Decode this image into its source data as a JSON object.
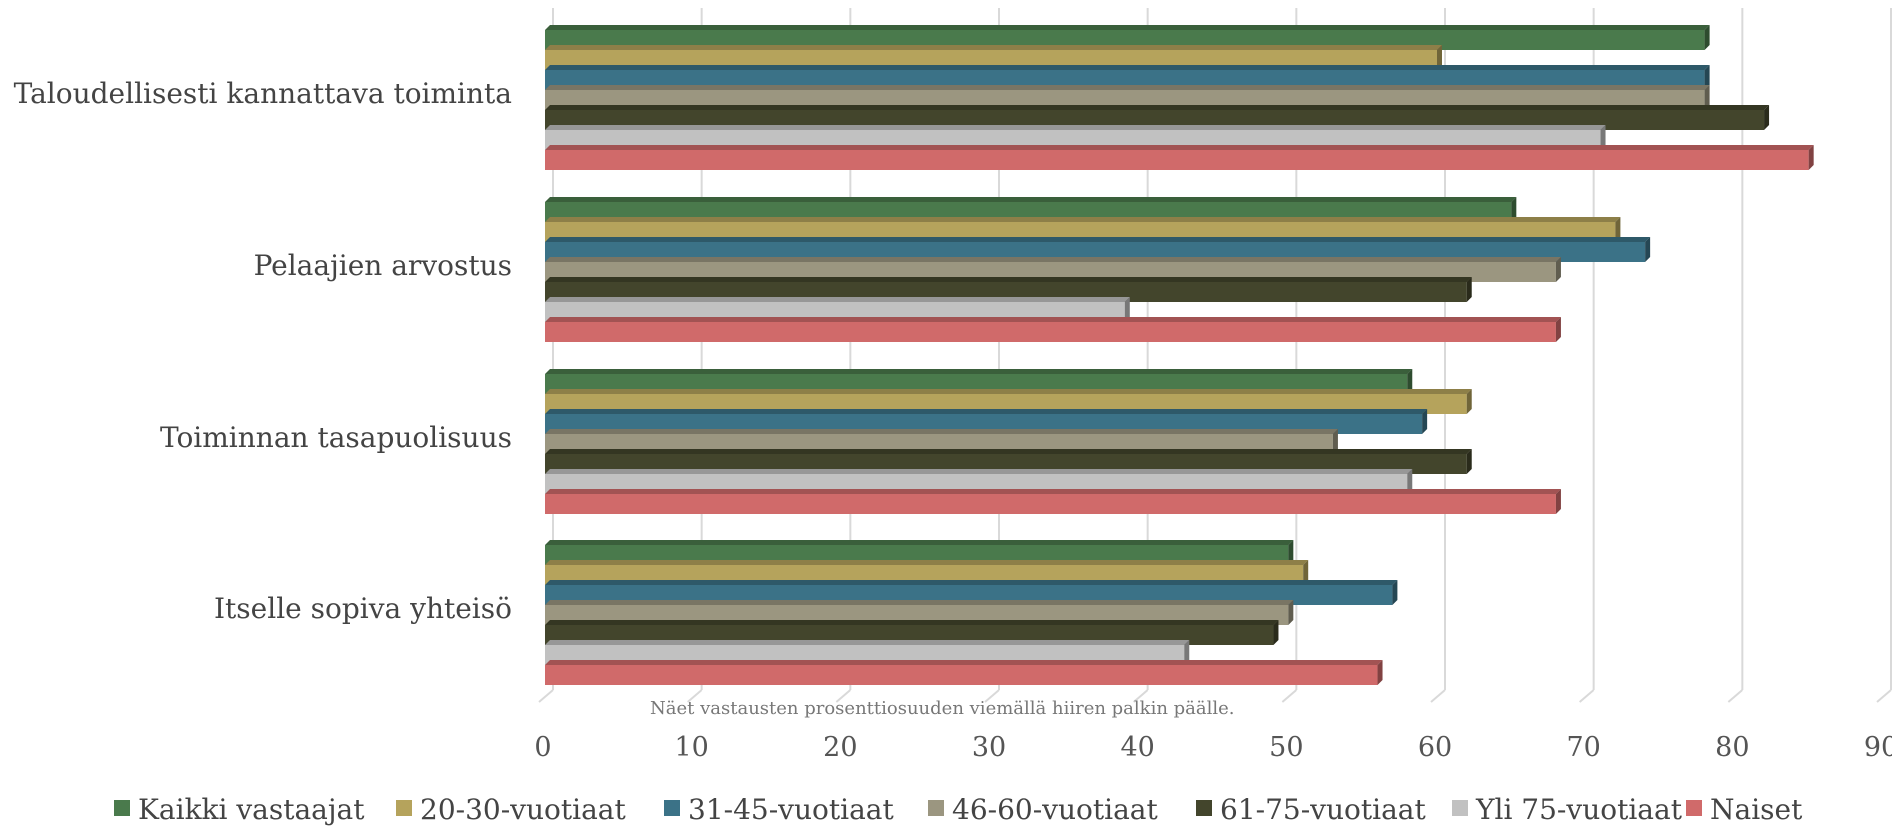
{
  "chart_data": {
    "type": "bar",
    "orientation": "horizontal",
    "title": "",
    "note": "Näet vastausten prosenttiosuuden viemällä hiiren palkin päälle.",
    "categories": [
      "Taloudellisesti kannattava toiminta",
      "Pelaajien arvostus",
      "Toiminnan tasapuolisuus",
      "Itselle sopiva yhteisö"
    ],
    "xlim": [
      0,
      90
    ],
    "xticks": [
      0,
      10,
      20,
      30,
      40,
      50,
      60,
      70,
      80,
      90
    ],
    "grid": true,
    "legend_position": "bottom",
    "series": [
      {
        "name": "Kaikki vastaajat",
        "color": "#4a7a4c",
        "values": [
          78,
          65,
          58,
          50
        ]
      },
      {
        "name": "20-30-vuotiaat",
        "color": "#b5a35c",
        "values": [
          60,
          72,
          62,
          51
        ]
      },
      {
        "name": "31-45-vuotiaat",
        "color": "#3b7287",
        "values": [
          78,
          74,
          59,
          57
        ]
      },
      {
        "name": "46-60-vuotiaat",
        "color": "#9b9680",
        "values": [
          78,
          68,
          53,
          50
        ]
      },
      {
        "name": "61-75-vuotiaat",
        "color": "#43452c",
        "values": [
          82,
          62,
          62,
          49
        ]
      },
      {
        "name": "Yli 75-vuotiaat",
        "color": "#c1c1c1",
        "values": [
          71,
          39,
          58,
          43
        ]
      },
      {
        "name": "Naiset",
        "color": "#d06a6a",
        "values": [
          85,
          68,
          68,
          56
        ]
      }
    ]
  }
}
